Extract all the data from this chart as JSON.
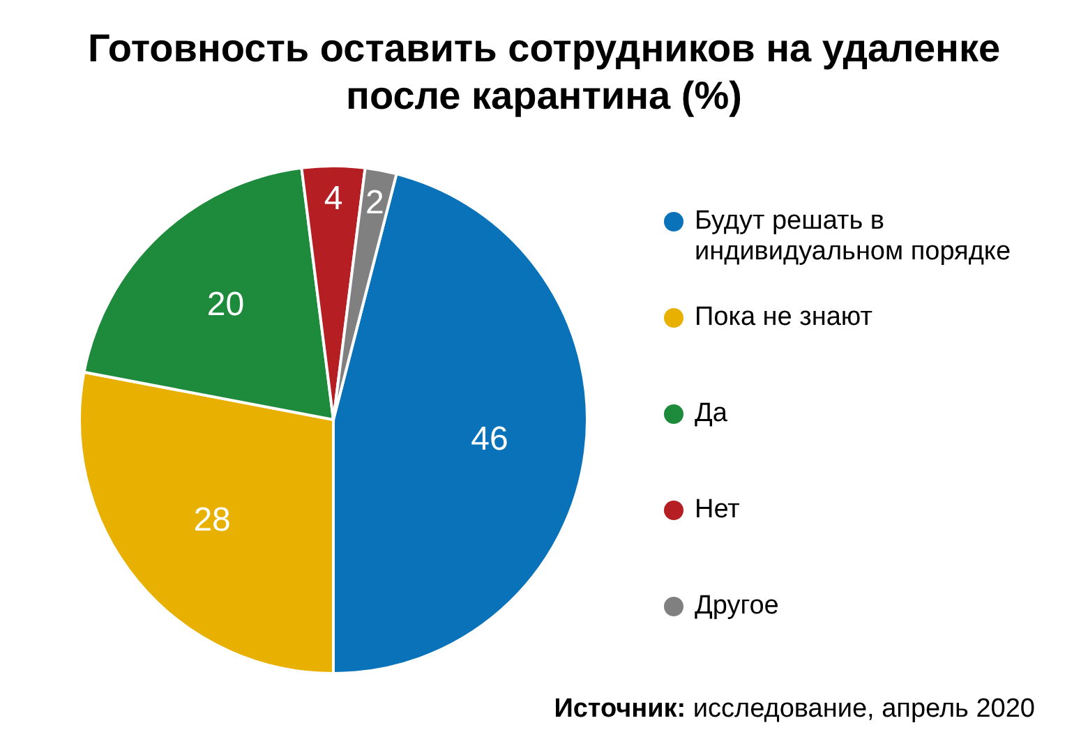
{
  "chart_data": {
    "type": "pie",
    "title": "Готовность оставить сотрудников на удаленке после карантина (%)",
    "categories": [
      "Будут решать в индивидуальном порядке",
      "Пока не знают",
      "Да",
      "Нет",
      "Другое"
    ],
    "values": [
      46,
      28,
      20,
      4,
      2
    ],
    "colors": [
      "#0a72b9",
      "#e8b000",
      "#1e8a3c",
      "#b51f24",
      "#808080"
    ],
    "data_labels": true,
    "legend": "right",
    "annotations": [
      "Источник: исследование, апрель 2020"
    ]
  }
}
